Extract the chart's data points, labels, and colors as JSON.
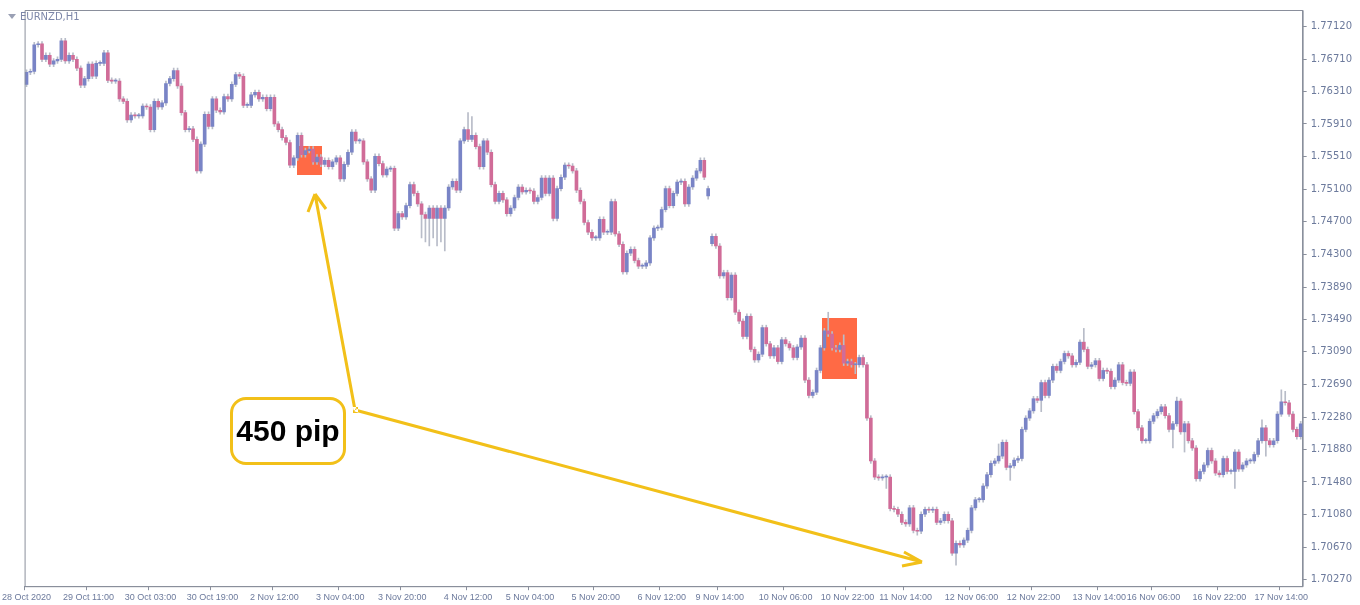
{
  "chart_data": {
    "type": "candlestick",
    "title": "EURNZD,H1",
    "annotations": [
      "450 pip"
    ],
    "colors": [
      "#7984c6",
      "#7984c6",
      "#7984c6",
      "#7984c6",
      "#d06c98",
      "#7984c6",
      "#d06c98",
      "#7984c6",
      "#7984c6",
      "#7984c6",
      "#d06c98",
      "#7984c6",
      "#d06c98",
      "#d06c98",
      "#d06c98",
      "#7984c6",
      "#7984c6",
      "#d06c98",
      "#7984c6",
      "#7984c6",
      "#7984c6",
      "#d06c98",
      "#d06c98",
      "#7984c6",
      "#d06c98",
      "#d06c98",
      "#d06c98",
      "#7984c6",
      "#d06c98",
      "#7984c6",
      "#7984c6",
      "#d06c98",
      "#d06c98",
      "#7984c6",
      "#d06c98",
      "#7984c6",
      "#7984c6",
      "#7984c6",
      "#7984c6",
      "#d06c98",
      "#d06c98",
      "#d06c98",
      "#7984c6",
      "#d06c98",
      "#d06c98",
      "#7984c6",
      "#7984c6",
      "#d06c98",
      "#7984c6",
      "#d06c98",
      "#d06c98",
      "#7984c6",
      "#d06c98",
      "#7984c6",
      "#7984c6",
      "#d06c98",
      "#d06c98",
      "#7984c6",
      "#7984c6",
      "#7984c6",
      "#d06c98",
      "#7984c6",
      "#d06c98",
      "#7984c6",
      "#d06c98",
      "#d06c98",
      "#d06c98",
      "#d06c98",
      "#d06c98",
      "#7984c6",
      "#7984c6",
      "#d06c98",
      "#7984c6",
      "#7984c6",
      "#d06c98",
      "#7984c6",
      "#d06c98",
      "#7984c6",
      "#d06c98",
      "#7984c6",
      "#7984c6",
      "#d06c98",
      "#7984c6",
      "#7984c6",
      "#7984c6",
      "#d06c98",
      "#7984c6",
      "#d06c98",
      "#d06c98",
      "#d06c98",
      "#7984c6",
      "#d06c98",
      "#d06c98",
      "#7984c6",
      "#7984c6",
      "#d06c98",
      "#7984c6",
      "#d06c98",
      "#7984c6",
      "#7984c6",
      "#d06c98",
      "#d06c98",
      "#d06c98",
      "#d06c98",
      "#7984c6",
      "#d06c98",
      "#7984c6",
      "#d06c98",
      "#7984c6",
      "#7984c6",
      "#7984c6",
      "#d06c98",
      "#7984c6",
      "#7984c6",
      "#d06c98",
      "#7984c6",
      "#d06c98",
      "#d06c98",
      "#7984c6",
      "#d06c98",
      "#d06c98",
      "#d06c98",
      "#7984c6",
      "#d06c98",
      "#d06c98",
      "#7984c6",
      "#7984c6",
      "#7984c6",
      "#d06c98",
      "#7984c6",
      "#d06c98",
      "#d06c98",
      "#7984c6",
      "#7984c6",
      "#d06c98",
      "#7984c6",
      "#d06c98",
      "#7984c6",
      "#7984c6",
      "#7984c6",
      "#d06c98",
      "#d06c98",
      "#d06c98",
      "#d06c98",
      "#d06c98",
      "#d06c98",
      "#d06c98",
      "#7984c6",
      "#7984c6",
      "#d06c98",
      "#7984c6",
      "#7984c6",
      "#d06c98",
      "#d06c98",
      "#d06c98",
      "#7984c6",
      "#7984c6",
      "#d06c98",
      "#d06c98",
      "#7984c6",
      "#7984c6",
      "#7984c6",
      "#7984c6",
      "#7984c6",
      "#7984c6",
      "#7984c6",
      "#d06c98",
      "#7984c6",
      "#7984c6",
      "#7984c6",
      "#d06c98",
      "#7984c6",
      "#7984c6",
      "#7984c6",
      "#7984c6",
      "#d06c98",
      "#7984c6",
      "#7984c6",
      "#d06c98",
      "#d06c98",
      "#7984c6",
      "#d06c98",
      "#7984c6",
      "#d06c98",
      "#d06c98",
      "#d06c98",
      "#7984c6",
      "#d06c98",
      "#d06c98",
      "#7984c6",
      "#7984c6",
      "#d06c98",
      "#d06c98",
      "#7984c6",
      "#d06c98",
      "#7984c6",
      "#d06c98",
      "#d06c98",
      "#d06c98",
      "#7984c6",
      "#7984c6",
      "#d06c98",
      "#d06c98",
      "#7984c6",
      "#7984c6",
      "#7984c6",
      "#7984c6",
      "#d06c98",
      "#d06c98",
      "#d06c98",
      "#7984c6",
      "#d06c98",
      "#7984c6",
      "#d06c98",
      "#7984c6",
      "#7984c6",
      "#d06c98",
      "#d06c98",
      "#d06c98",
      "#d06c98",
      "#d06c98",
      "#7984c6",
      "#7984c6",
      "#d06c98",
      "#d06c98",
      "#d06c98",
      "#d06c98",
      "#d06c98",
      "#7984c6",
      "#d06c98",
      "#d06c98",
      "#7984c6",
      "#7984c6",
      "#d06c98",
      "#7984c6",
      "#d06c98",
      "#7984c6",
      "#7984c6",
      "#d06c98",
      "#d06c98",
      "#7984c6",
      "#d06c98",
      "#7984c6",
      "#7984c6",
      "#7984c6",
      "#7984c6",
      "#7984c6",
      "#7984c6",
      "#7984c6",
      "#7984c6",
      "#7984c6",
      "#7984c6",
      "#7984c6",
      "#d06c98",
      "#7984c6",
      "#7984c6",
      "#7984c6",
      "#7984c6",
      "#7984c6",
      "#7984c6",
      "#7984c6",
      "#d06c98",
      "#7984c6",
      "#d06c98",
      "#7984c6",
      "#7984c6",
      "#d06c98",
      "#7984c6",
      "#7984c6",
      "#d06c98",
      "#d06c98",
      "#7984c6",
      "#7984c6",
      "#d06c98",
      "#d06c98",
      "#7984c6",
      "#7984c6",
      "#d06c98",
      "#7984c6",
      "#d06c98",
      "#d06c98",
      "#7984c6",
      "#7984c6",
      "#d06c98",
      "#d06c98",
      "#7984c6",
      "#d06c98",
      "#d06c98",
      "#d06c98",
      "#7984c6",
      "#7984c6",
      "#7984c6",
      "#7984c6",
      "#7984c6",
      "#d06c98",
      "#d06c98",
      "#7984c6",
      "#7984c6",
      "#d06c98",
      "#7984c6",
      "#d06c98",
      "#d06c98",
      "#d06c98",
      "#7984c6",
      "#7984c6",
      "#7984c6",
      "#d06c98",
      "#d06c98",
      "#d06c98",
      "#7984c6",
      "#d06c98",
      "#7984c6",
      "#7984c6",
      "#d06c98",
      "#7984c6",
      "#7984c6",
      "#7984c6",
      "#7984c6",
      "#7984c6",
      "#7984c6",
      "#d06c98",
      "#d06c98",
      "#7984c6",
      "#7984c6",
      "#7984c6",
      "#d06c98",
      "#d06c98",
      "#d06c98",
      "#d06c98",
      "#7984c6"
    ],
    "ylim": [
      1.7019,
      1.7732
    ],
    "yticks": [
      {
        "value": 1.7712,
        "label": "1.77120"
      },
      {
        "value": 1.7671,
        "label": "1.76710"
      },
      {
        "value": 1.7631,
        "label": "1.76310"
      },
      {
        "value": 1.7591,
        "label": "1.75910"
      },
      {
        "value": 1.7551,
        "label": "1.75510"
      },
      {
        "value": 1.751,
        "label": "1.75100"
      },
      {
        "value": 1.747,
        "label": "1.74700"
      },
      {
        "value": 1.743,
        "label": "1.74300"
      },
      {
        "value": 1.7389,
        "label": "1.73890"
      },
      {
        "value": 1.7349,
        "label": "1.73490"
      },
      {
        "value": 1.7309,
        "label": "1.73090"
      },
      {
        "value": 1.7269,
        "label": "1.72690"
      },
      {
        "value": 1.7228,
        "label": "1.72280"
      },
      {
        "value": 1.7188,
        "label": "1.71880"
      },
      {
        "value": 1.7148,
        "label": "1.71480"
      },
      {
        "value": 1.7108,
        "label": "1.71080"
      },
      {
        "value": 1.7067,
        "label": "1.70670"
      },
      {
        "value": 1.7027,
        "label": "1.70270"
      }
    ],
    "categories": [
      "28 Oct 2020",
      null,
      null,
      null,
      null,
      null,
      null,
      null,
      null,
      null,
      null,
      null,
      null,
      null,
      null,
      null,
      "29 Oct 11:00",
      null,
      null,
      null,
      null,
      null,
      null,
      null,
      null,
      null,
      null,
      null,
      null,
      null,
      null,
      null,
      "30 Oct 03:00",
      null,
      null,
      null,
      null,
      null,
      null,
      null,
      null,
      null,
      null,
      null,
      null,
      null,
      null,
      null,
      "30 Oct 19:00",
      null,
      null,
      null,
      null,
      null,
      null,
      null,
      null,
      null,
      null,
      null,
      null,
      null,
      null,
      null,
      "2 Nov 12:00",
      null,
      null,
      null,
      null,
      null,
      null,
      null,
      null,
      null,
      null,
      null,
      null,
      null,
      null,
      null,
      null,
      "3 Nov 04:00",
      null,
      null,
      null,
      null,
      null,
      null,
      null,
      null,
      null,
      null,
      null,
      null,
      null,
      null,
      null,
      "3 Nov 20:00",
      null,
      null,
      null,
      null,
      null,
      null,
      null,
      null,
      null,
      null,
      null,
      null,
      null,
      null,
      null,
      null,
      "4 Nov 12:00",
      null,
      null,
      null,
      null,
      null,
      null,
      null,
      null,
      null,
      null,
      null,
      null,
      null,
      null,
      null,
      "5 Nov 04:00",
      null,
      null,
      null,
      null,
      null,
      null,
      null,
      null,
      null,
      null,
      null,
      null,
      null,
      null,
      null,
      null,
      "5 Nov 20:00",
      null,
      null,
      null,
      null,
      null,
      null,
      null,
      null,
      null,
      null,
      null,
      null,
      null,
      null,
      null,
      null,
      "6 Nov 12:00",
      null,
      null,
      null,
      null,
      null,
      null,
      null,
      null,
      null,
      null,
      null,
      null,
      null,
      null,
      "9 Nov 14:00",
      null,
      null,
      null,
      null,
      null,
      null,
      null,
      null,
      null,
      null,
      null,
      null,
      null,
      null,
      null,
      null,
      "10 Nov 06:00",
      null,
      null,
      null,
      null,
      null,
      null,
      null,
      null,
      null,
      null,
      null,
      null,
      null,
      null,
      null,
      "10 Nov 22:00",
      null,
      null,
      null,
      null,
      null,
      null,
      null,
      null,
      null,
      null,
      null,
      null,
      null,
      null,
      "11 Nov 14:00",
      null,
      null,
      null,
      null,
      null,
      null,
      null,
      null,
      null,
      null,
      null,
      null,
      null,
      null,
      null,
      null,
      "12 Nov 06:00",
      null,
      null,
      null,
      null,
      null,
      null,
      null,
      null,
      null,
      null,
      null,
      null,
      null,
      null,
      null,
      "12 Nov 22:00",
      null,
      null,
      null,
      null,
      null,
      null,
      null,
      null,
      null,
      null,
      null,
      null,
      null,
      null,
      null,
      null,
      "13 Nov 14:00",
      null,
      null,
      null,
      null,
      null,
      null,
      null,
      null,
      null,
      null,
      null,
      null,
      null,
      "16 Nov 06:00",
      null,
      null,
      null,
      null,
      null,
      null,
      null,
      null,
      null,
      null,
      null,
      null,
      null,
      null,
      null,
      null,
      "16 Nov 22:00",
      null,
      null,
      null,
      null,
      null,
      null,
      null,
      null,
      null,
      null,
      null,
      null,
      null,
      null,
      null,
      "17 Nov 14:00",
      null,
      null,
      null,
      null,
      null
    ],
    "ohlc": [
      [
        1.764,
        1.7658,
        1.7637,
        1.7655
      ],
      [
        1.7655,
        1.7659,
        1.7652,
        1.7656
      ],
      [
        1.7656,
        1.7692,
        1.7653,
        1.7689
      ],
      [
        1.7689,
        1.7693,
        1.7686,
        1.769
      ],
      [
        1.769,
        1.7693,
        1.7668,
        1.7671
      ],
      [
        1.7671,
        1.7679,
        1.7668,
        1.7676
      ],
      [
        1.7676,
        1.7679,
        1.7662,
        1.7665
      ],
      [
        1.7665,
        1.7672,
        1.7662,
        1.7669
      ],
      [
        1.7669,
        1.7674,
        1.7666,
        1.7671
      ],
      [
        1.7671,
        1.7697,
        1.7668,
        1.7694
      ],
      [
        1.7694,
        1.7697,
        1.7666,
        1.7669
      ],
      [
        1.7669,
        1.7679,
        1.7666,
        1.7676
      ],
      [
        1.7676,
        1.7679,
        1.7668,
        1.7671
      ],
      [
        1.7671,
        1.7674,
        1.7657,
        1.766
      ],
      [
        1.766,
        1.7663,
        1.7636,
        1.7639
      ],
      [
        1.7639,
        1.765,
        1.7636,
        1.7647
      ],
      [
        1.7647,
        1.7668,
        1.7644,
        1.7665
      ],
      [
        1.7665,
        1.7668,
        1.7647,
        1.765
      ],
      [
        1.765,
        1.7669,
        1.7647,
        1.7666
      ],
      [
        1.7666,
        1.7669,
        1.7663,
        1.7666
      ],
      [
        1.7666,
        1.7682,
        1.7663,
        1.7679
      ],
      [
        1.7679,
        1.7682,
        1.7642,
        1.7645
      ],
      [
        1.7645,
        1.7648,
        1.7641,
        1.7644
      ],
      [
        1.7644,
        1.7647,
        1.7641,
        1.7644
      ],
      [
        1.7644,
        1.7647,
        1.7619,
        1.7622
      ],
      [
        1.7622,
        1.7625,
        1.7616,
        1.7619
      ],
      [
        1.7619,
        1.7622,
        1.7593,
        1.7596
      ],
      [
        1.7596,
        1.7605,
        1.7593,
        1.7602
      ],
      [
        1.7602,
        1.7605,
        1.7598,
        1.7601
      ],
      [
        1.7601,
        1.7604,
        1.7598,
        1.7601
      ],
      [
        1.7601,
        1.7616,
        1.7598,
        1.7613
      ],
      [
        1.7613,
        1.7616,
        1.7609,
        1.7612
      ],
      [
        1.7612,
        1.7615,
        1.7581,
        1.7584
      ],
      [
        1.7584,
        1.7622,
        1.7581,
        1.7619
      ],
      [
        1.7619,
        1.7622,
        1.7609,
        1.7612
      ],
      [
        1.7612,
        1.762,
        1.7609,
        1.7617
      ],
      [
        1.7617,
        1.7644,
        1.7614,
        1.7641
      ],
      [
        1.7641,
        1.765,
        1.7638,
        1.7647
      ],
      [
        1.7647,
        1.766,
        1.7644,
        1.7657
      ],
      [
        1.7657,
        1.766,
        1.7635,
        1.7638
      ],
      [
        1.7638,
        1.7641,
        1.7602,
        1.7605
      ],
      [
        1.7605,
        1.7608,
        1.7581,
        1.7584
      ],
      [
        1.7584,
        1.7588,
        1.7581,
        1.7585
      ],
      [
        1.7585,
        1.7588,
        1.7569,
        1.7572
      ],
      [
        1.7572,
        1.7575,
        1.753,
        1.7533
      ],
      [
        1.7533,
        1.7569,
        1.753,
        1.7566
      ],
      [
        1.7566,
        1.7606,
        1.7563,
        1.7603
      ],
      [
        1.7603,
        1.7606,
        1.7585,
        1.7588
      ],
      [
        1.7588,
        1.7625,
        1.7585,
        1.7622
      ],
      [
        1.7622,
        1.7625,
        1.7605,
        1.7608
      ],
      [
        1.7608,
        1.7611,
        1.7603,
        1.7606
      ],
      [
        1.7606,
        1.7628,
        1.7603,
        1.7625
      ],
      [
        1.7625,
        1.7628,
        1.7619,
        1.7622
      ],
      [
        1.7622,
        1.7643,
        1.7619,
        1.764
      ],
      [
        1.764,
        1.7655,
        1.7637,
        1.7652
      ],
      [
        1.7652,
        1.7655,
        1.7647,
        1.765
      ],
      [
        1.765,
        1.7653,
        1.7611,
        1.7614
      ],
      [
        1.7614,
        1.7617,
        1.7611,
        1.7614
      ],
      [
        1.7614,
        1.763,
        1.7611,
        1.7627
      ],
      [
        1.7627,
        1.7633,
        1.7624,
        1.763
      ],
      [
        1.763,
        1.7633,
        1.7619,
        1.7622
      ],
      [
        1.7622,
        1.7627,
        1.7619,
        1.7624
      ],
      [
        1.7624,
        1.7627,
        1.7607,
        1.761
      ],
      [
        1.761,
        1.7627,
        1.7607,
        1.7624
      ],
      [
        1.7624,
        1.7627,
        1.7588,
        1.7591
      ],
      [
        1.7591,
        1.7594,
        1.7581,
        1.7584
      ],
      [
        1.7584,
        1.7587,
        1.7571,
        1.7574
      ],
      [
        1.7574,
        1.7577,
        1.7565,
        1.7568
      ],
      [
        1.7568,
        1.7571,
        1.7537,
        1.754
      ],
      [
        1.754,
        1.7552,
        1.7537,
        1.7549
      ],
      [
        1.7549,
        1.758,
        1.7546,
        1.7577
      ],
      [
        1.7577,
        1.758,
        1.755,
        1.7553
      ],
      [
        1.7553,
        1.7561,
        1.755,
        1.7558
      ],
      [
        1.7558,
        1.7563,
        1.7555,
        1.756
      ],
      [
        1.756,
        1.7563,
        1.7541,
        1.7544
      ],
      [
        1.7544,
        1.7553,
        1.7541,
        1.755
      ],
      [
        1.755,
        1.7553,
        1.7538,
        1.7541
      ],
      [
        1.7541,
        1.7549,
        1.7538,
        1.7546
      ],
      [
        1.7546,
        1.7549,
        1.7535,
        1.7538
      ],
      [
        1.7538,
        1.7547,
        1.7535,
        1.7544
      ],
      [
        1.7544,
        1.7552,
        1.7541,
        1.7549
      ],
      [
        1.7549,
        1.7552,
        1.752,
        1.7523
      ],
      [
        1.7523,
        1.7544,
        1.752,
        1.7541
      ],
      [
        1.7541,
        1.7559,
        1.7538,
        1.7556
      ],
      [
        1.7556,
        1.7584,
        1.7553,
        1.7581
      ],
      [
        1.7581,
        1.7584,
        1.7567,
        1.757
      ],
      [
        1.757,
        1.7573,
        1.7567,
        1.757
      ],
      [
        1.757,
        1.7573,
        1.7541,
        1.7544
      ],
      [
        1.7544,
        1.7547,
        1.752,
        1.7523
      ],
      [
        1.7523,
        1.7526,
        1.7506,
        1.7509
      ],
      [
        1.7509,
        1.7554,
        1.7506,
        1.7551
      ],
      [
        1.7551,
        1.7554,
        1.7539,
        1.7542
      ],
      [
        1.7542,
        1.7545,
        1.7525,
        1.7528
      ],
      [
        1.7528,
        1.7538,
        1.7525,
        1.7535
      ],
      [
        1.7535,
        1.7539,
        1.7532,
        1.7536
      ],
      [
        1.7536,
        1.7539,
        1.7459,
        1.7462
      ],
      [
        1.7462,
        1.7483,
        1.7459,
        1.748
      ],
      [
        1.748,
        1.7483,
        1.7473,
        1.7476
      ],
      [
        1.7476,
        1.7493,
        1.7473,
        1.749
      ],
      [
        1.749,
        1.7519,
        1.7487,
        1.7516
      ],
      [
        1.7516,
        1.7519,
        1.7502,
        1.7505
      ],
      [
        1.7505,
        1.7508,
        1.7489,
        1.7492
      ],
      [
        1.7492,
        1.7495,
        1.745,
        1.7479
      ],
      [
        1.7479,
        1.7482,
        1.7445,
        1.7474
      ],
      [
        1.7474,
        1.749,
        1.744,
        1.7487
      ],
      [
        1.7487,
        1.749,
        1.745,
        1.7474
      ],
      [
        1.7474,
        1.749,
        1.744,
        1.7487
      ],
      [
        1.7487,
        1.749,
        1.7445,
        1.7474
      ],
      [
        1.7474,
        1.749,
        1.7434,
        1.7487
      ],
      [
        1.7487,
        1.7516,
        1.7484,
        1.7513
      ],
      [
        1.7513,
        1.7523,
        1.751,
        1.752
      ],
      [
        1.752,
        1.7523,
        1.7506,
        1.7509
      ],
      [
        1.7509,
        1.7573,
        1.7506,
        1.757
      ],
      [
        1.757,
        1.7587,
        1.7567,
        1.7584
      ],
      [
        1.7584,
        1.7605,
        1.7569,
        1.7572
      ],
      [
        1.7572,
        1.76,
        1.7569,
        1.7577
      ],
      [
        1.7577,
        1.758,
        1.756,
        1.7563
      ],
      [
        1.7563,
        1.7566,
        1.7535,
        1.7538
      ],
      [
        1.7538,
        1.7573,
        1.7535,
        1.757
      ],
      [
        1.757,
        1.7573,
        1.7553,
        1.7556
      ],
      [
        1.7556,
        1.7559,
        1.7513,
        1.7516
      ],
      [
        1.7516,
        1.7519,
        1.7492,
        1.7495
      ],
      [
        1.7495,
        1.7508,
        1.7492,
        1.7505
      ],
      [
        1.7505,
        1.7508,
        1.7494,
        1.7497
      ],
      [
        1.7497,
        1.75,
        1.7477,
        1.748
      ],
      [
        1.748,
        1.749,
        1.7477,
        1.7487
      ],
      [
        1.7487,
        1.7503,
        1.7484,
        1.75
      ],
      [
        1.75,
        1.7516,
        1.7497,
        1.7513
      ],
      [
        1.7513,
        1.7516,
        1.7504,
        1.7507
      ],
      [
        1.7507,
        1.7512,
        1.7504,
        1.7509
      ],
      [
        1.7509,
        1.7512,
        1.7505,
        1.7508
      ],
      [
        1.7508,
        1.7511,
        1.7492,
        1.7495
      ],
      [
        1.7495,
        1.7503,
        1.7492,
        1.75
      ],
      [
        1.75,
        1.7527,
        1.7497,
        1.7524
      ],
      [
        1.7524,
        1.7527,
        1.7502,
        1.7505
      ],
      [
        1.7505,
        1.7527,
        1.7502,
        1.7524
      ],
      [
        1.7524,
        1.7527,
        1.7471,
        1.7474
      ],
      [
        1.7474,
        1.7514,
        1.7471,
        1.7511
      ],
      [
        1.7511,
        1.7528,
        1.7508,
        1.7525
      ],
      [
        1.7525,
        1.7543,
        1.7522,
        1.754
      ],
      [
        1.754,
        1.7543,
        1.7536,
        1.7539
      ],
      [
        1.7539,
        1.7542,
        1.753,
        1.7533
      ],
      [
        1.7533,
        1.7536,
        1.7506,
        1.7509
      ],
      [
        1.7509,
        1.7512,
        1.7492,
        1.7495
      ],
      [
        1.7495,
        1.7498,
        1.7466,
        1.7469
      ],
      [
        1.7469,
        1.7472,
        1.7454,
        1.7457
      ],
      [
        1.7457,
        1.746,
        1.7447,
        1.745
      ],
      [
        1.745,
        1.7453,
        1.7447,
        1.745
      ],
      [
        1.745,
        1.7476,
        1.7447,
        1.7473
      ],
      [
        1.7473,
        1.7476,
        1.7454,
        1.7457
      ],
      [
        1.7457,
        1.746,
        1.7454,
        1.7457
      ],
      [
        1.7457,
        1.7498,
        1.7454,
        1.7495
      ],
      [
        1.7495,
        1.7498,
        1.7452,
        1.7455
      ],
      [
        1.7455,
        1.7458,
        1.7439,
        1.7442
      ],
      [
        1.7442,
        1.7445,
        1.7405,
        1.7408
      ],
      [
        1.7408,
        1.7434,
        1.7405,
        1.7431
      ],
      [
        1.7431,
        1.7439,
        1.7428,
        1.7436
      ],
      [
        1.7436,
        1.7439,
        1.7419,
        1.7422
      ],
      [
        1.7422,
        1.7425,
        1.7412,
        1.7415
      ],
      [
        1.7415,
        1.7418,
        1.7412,
        1.7415
      ],
      [
        1.7415,
        1.7422,
        1.7412,
        1.7419
      ],
      [
        1.7419,
        1.7453,
        1.7416,
        1.745
      ],
      [
        1.745,
        1.7465,
        1.7447,
        1.7462
      ],
      [
        1.7462,
        1.7466,
        1.7459,
        1.7463
      ],
      [
        1.7463,
        1.7488,
        1.746,
        1.7485
      ],
      [
        1.7485,
        1.7514,
        1.7482,
        1.7511
      ],
      [
        1.7511,
        1.7514,
        1.7487,
        1.749
      ],
      [
        1.749,
        1.7508,
        1.7487,
        1.7505
      ],
      [
        1.7505,
        1.7522,
        1.7502,
        1.7519
      ],
      [
        1.7519,
        1.7523,
        1.7516,
        1.752
      ],
      [
        1.752,
        1.7523,
        1.7489,
        1.7492
      ],
      [
        1.7492,
        1.7516,
        1.7489,
        1.7513
      ],
      [
        1.7513,
        1.7527,
        1.751,
        1.7524
      ],
      [
        1.7524,
        1.7536,
        1.7521,
        1.7533
      ],
      [
        1.7533,
        1.7549,
        1.753,
        1.7546
      ],
      [
        1.7546,
        1.7549,
        1.7522,
        1.7525
      ],
      [
        1.7502,
        1.7514,
        1.7498,
        1.7511
      ],
      [
        1.7443,
        1.7455,
        1.744,
        1.7452
      ],
      [
        1.7452,
        1.7455,
        1.7437,
        1.744
      ],
      [
        1.744,
        1.7443,
        1.74,
        1.7403
      ],
      [
        1.7403,
        1.741,
        1.74,
        1.7407
      ],
      [
        1.7407,
        1.741,
        1.7373,
        1.7376
      ],
      [
        1.7376,
        1.7407,
        1.7373,
        1.7404
      ],
      [
        1.7404,
        1.7407,
        1.7355,
        1.7358
      ],
      [
        1.7358,
        1.7361,
        1.7344,
        1.7347
      ],
      [
        1.7347,
        1.735,
        1.7325,
        1.7328
      ],
      [
        1.7328,
        1.7356,
        1.7325,
        1.7353
      ],
      [
        1.7353,
        1.7356,
        1.7309,
        1.7312
      ],
      [
        1.7312,
        1.7315,
        1.7296,
        1.7299
      ],
      [
        1.7299,
        1.7309,
        1.7296,
        1.7306
      ],
      [
        1.7306,
        1.7342,
        1.7303,
        1.7339
      ],
      [
        1.7339,
        1.7342,
        1.7316,
        1.7319
      ],
      [
        1.7319,
        1.7322,
        1.7301,
        1.7304
      ],
      [
        1.7304,
        1.7317,
        1.7301,
        1.7314
      ],
      [
        1.7314,
        1.7317,
        1.7294,
        1.7297
      ],
      [
        1.7297,
        1.7327,
        1.7294,
        1.7324
      ],
      [
        1.7324,
        1.7327,
        1.7316,
        1.7319
      ],
      [
        1.7319,
        1.7322,
        1.7311,
        1.7314
      ],
      [
        1.7314,
        1.7317,
        1.7299,
        1.7302
      ],
      [
        1.7302,
        1.7318,
        1.7299,
        1.7315
      ],
      [
        1.7315,
        1.7329,
        1.7312,
        1.7326
      ],
      [
        1.7326,
        1.7329,
        1.7271,
        1.7274
      ],
      [
        1.7274,
        1.7277,
        1.7252,
        1.7255
      ],
      [
        1.7255,
        1.7262,
        1.7252,
        1.7259
      ],
      [
        1.7259,
        1.7289,
        1.7256,
        1.7286
      ],
      [
        1.7286,
        1.7317,
        1.7283,
        1.7314
      ],
      [
        1.7314,
        1.7338,
        1.7311,
        1.7335
      ],
      [
        1.7335,
        1.7358,
        1.7328,
        1.7331
      ],
      [
        1.7331,
        1.7334,
        1.7311,
        1.7314
      ],
      [
        1.7314,
        1.7317,
        1.7309,
        1.7312
      ],
      [
        1.7312,
        1.732,
        1.7309,
        1.7317
      ],
      [
        1.7317,
        1.733,
        1.7292,
        1.7295
      ],
      [
        1.7295,
        1.73,
        1.7292,
        1.7297
      ],
      [
        1.7297,
        1.73,
        1.729,
        1.7293
      ],
      [
        1.7293,
        1.7296,
        1.7282,
        1.7293
      ],
      [
        1.7293,
        1.7305,
        1.729,
        1.7302
      ],
      [
        1.7302,
        1.7305,
        1.729,
        1.7293
      ],
      [
        1.7293,
        1.7296,
        1.7224,
        1.7227
      ],
      [
        1.7227,
        1.723,
        1.7171,
        1.7174
      ],
      [
        1.7174,
        1.7177,
        1.7151,
        1.7154
      ],
      [
        1.7154,
        1.7157,
        1.715,
        1.7153
      ],
      [
        1.7153,
        1.7157,
        1.715,
        1.7154
      ],
      [
        1.7154,
        1.7157,
        1.714,
        1.7154
      ],
      [
        1.7154,
        1.7157,
        1.7112,
        1.7115
      ],
      [
        1.7115,
        1.7118,
        1.7111,
        1.7114
      ],
      [
        1.7114,
        1.7117,
        1.7105,
        1.7108
      ],
      [
        1.7108,
        1.7111,
        1.7095,
        1.7098
      ],
      [
        1.7098,
        1.7101,
        1.7093,
        1.7096
      ],
      [
        1.7096,
        1.7119,
        1.7093,
        1.7116
      ],
      [
        1.7116,
        1.7119,
        1.7085,
        1.7088
      ],
      [
        1.7088,
        1.7091,
        1.7082,
        1.7087
      ],
      [
        1.7087,
        1.7111,
        1.7084,
        1.7108
      ],
      [
        1.7108,
        1.7117,
        1.7105,
        1.7114
      ],
      [
        1.7114,
        1.7117,
        1.711,
        1.7113
      ],
      [
        1.7113,
        1.7117,
        1.711,
        1.7114
      ],
      [
        1.7114,
        1.7117,
        1.7095,
        1.7098
      ],
      [
        1.7098,
        1.7103,
        1.7095,
        1.71
      ],
      [
        1.71,
        1.7111,
        1.7097,
        1.7108
      ],
      [
        1.7108,
        1.7111,
        1.7097,
        1.71
      ],
      [
        1.71,
        1.7103,
        1.7057,
        1.706
      ],
      [
        1.706,
        1.7075,
        1.7045,
        1.7072
      ],
      [
        1.7072,
        1.7075,
        1.7067,
        1.707
      ],
      [
        1.707,
        1.7079,
        1.7067,
        1.7076
      ],
      [
        1.7076,
        1.7091,
        1.7073,
        1.7088
      ],
      [
        1.7088,
        1.7119,
        1.7085,
        1.7116
      ],
      [
        1.7116,
        1.7129,
        1.7113,
        1.7126
      ],
      [
        1.7126,
        1.7129,
        1.7123,
        1.7126
      ],
      [
        1.7126,
        1.7146,
        1.7123,
        1.7143
      ],
      [
        1.7143,
        1.716,
        1.714,
        1.7157
      ],
      [
        1.7157,
        1.7174,
        1.7154,
        1.7171
      ],
      [
        1.7171,
        1.7177,
        1.7168,
        1.7174
      ],
      [
        1.7174,
        1.7195,
        1.7171,
        1.718
      ],
      [
        1.718,
        1.72,
        1.7177,
        1.7197
      ],
      [
        1.7197,
        1.72,
        1.7163,
        1.7166
      ],
      [
        1.7166,
        1.7171,
        1.715,
        1.7168
      ],
      [
        1.7168,
        1.7178,
        1.7165,
        1.7175
      ],
      [
        1.7175,
        1.718,
        1.7172,
        1.7177
      ],
      [
        1.7177,
        1.7216,
        1.7174,
        1.7213
      ],
      [
        1.7213,
        1.723,
        1.721,
        1.7227
      ],
      [
        1.7227,
        1.7239,
        1.7224,
        1.7236
      ],
      [
        1.7236,
        1.7254,
        1.7233,
        1.7251
      ],
      [
        1.7251,
        1.7254,
        1.7246,
        1.7249
      ],
      [
        1.7249,
        1.7274,
        1.7235,
        1.7271
      ],
      [
        1.7271,
        1.7274,
        1.7252,
        1.7255
      ],
      [
        1.7255,
        1.7277,
        1.7252,
        1.7274
      ],
      [
        1.7274,
        1.7294,
        1.7271,
        1.7291
      ],
      [
        1.7291,
        1.7294,
        1.7283,
        1.7286
      ],
      [
        1.7286,
        1.73,
        1.7283,
        1.7297
      ],
      [
        1.7297,
        1.731,
        1.7294,
        1.7307
      ],
      [
        1.7307,
        1.731,
        1.7301,
        1.7304
      ],
      [
        1.7304,
        1.7307,
        1.729,
        1.7293
      ],
      [
        1.7293,
        1.7299,
        1.729,
        1.7296
      ],
      [
        1.7296,
        1.7324,
        1.7293,
        1.7321
      ],
      [
        1.7321,
        1.7338,
        1.7309,
        1.7312
      ],
      [
        1.7312,
        1.7315,
        1.7288,
        1.7291
      ],
      [
        1.7291,
        1.7296,
        1.7288,
        1.7293
      ],
      [
        1.7293,
        1.7301,
        1.729,
        1.7298
      ],
      [
        1.7298,
        1.7301,
        1.7273,
        1.7276
      ],
      [
        1.7276,
        1.7289,
        1.7273,
        1.7286
      ],
      [
        1.7286,
        1.7289,
        1.7282,
        1.7285
      ],
      [
        1.7285,
        1.7288,
        1.7263,
        1.7266
      ],
      [
        1.7266,
        1.7277,
        1.7263,
        1.7274
      ],
      [
        1.7274,
        1.7296,
        1.7271,
        1.7293
      ],
      [
        1.7293,
        1.7296,
        1.7268,
        1.7271
      ],
      [
        1.7271,
        1.7274,
        1.7267,
        1.727
      ],
      [
        1.727,
        1.7287,
        1.7267,
        1.7284
      ],
      [
        1.7284,
        1.7287,
        1.7232,
        1.7235
      ],
      [
        1.7235,
        1.7238,
        1.7212,
        1.7215
      ],
      [
        1.7215,
        1.7218,
        1.7196,
        1.7199
      ],
      [
        1.7199,
        1.7202,
        1.7196,
        1.7199
      ],
      [
        1.7199,
        1.7226,
        1.7196,
        1.7223
      ],
      [
        1.7223,
        1.7233,
        1.722,
        1.723
      ],
      [
        1.723,
        1.7238,
        1.7227,
        1.7235
      ],
      [
        1.7235,
        1.7244,
        1.7232,
        1.7241
      ],
      [
        1.7241,
        1.7244,
        1.7227,
        1.723
      ],
      [
        1.723,
        1.7233,
        1.721,
        1.7213
      ],
      [
        1.7213,
        1.7223,
        1.719,
        1.722
      ],
      [
        1.722,
        1.7253,
        1.7217,
        1.7248
      ],
      [
        1.7248,
        1.7251,
        1.7207,
        1.721
      ],
      [
        1.721,
        1.7223,
        1.7185,
        1.722
      ],
      [
        1.722,
        1.7223,
        1.7196,
        1.7199
      ],
      [
        1.7199,
        1.7202,
        1.7187,
        1.719
      ],
      [
        1.719,
        1.7193,
        1.7149,
        1.7152
      ],
      [
        1.7152,
        1.7164,
        1.7149,
        1.7161
      ],
      [
        1.7161,
        1.7172,
        1.7158,
        1.7169
      ],
      [
        1.7169,
        1.719,
        1.7166,
        1.7187
      ],
      [
        1.7187,
        1.719,
        1.7171,
        1.7174
      ],
      [
        1.7174,
        1.7177,
        1.7156,
        1.7159
      ],
      [
        1.7159,
        1.7162,
        1.7154,
        1.7157
      ],
      [
        1.7157,
        1.718,
        1.7154,
        1.7177
      ],
      [
        1.7177,
        1.718,
        1.7158,
        1.7161
      ],
      [
        1.7161,
        1.7164,
        1.7158,
        1.7161
      ],
      [
        1.7161,
        1.7188,
        1.714,
        1.7185
      ],
      [
        1.7185,
        1.7188,
        1.7161,
        1.7164
      ],
      [
        1.7164,
        1.7172,
        1.7161,
        1.7169
      ],
      [
        1.7169,
        1.7177,
        1.7166,
        1.7174
      ],
      [
        1.7174,
        1.7177,
        1.7171,
        1.7174
      ],
      [
        1.7174,
        1.7185,
        1.7171,
        1.7182
      ],
      [
        1.7182,
        1.7202,
        1.7179,
        1.7199
      ],
      [
        1.7199,
        1.7225,
        1.7196,
        1.7215
      ],
      [
        1.7215,
        1.7218,
        1.718,
        1.7199
      ],
      [
        1.7199,
        1.7202,
        1.7191,
        1.7194
      ],
      [
        1.7194,
        1.7202,
        1.7191,
        1.7199
      ],
      [
        1.7199,
        1.7235,
        1.7196,
        1.7232
      ],
      [
        1.7232,
        1.7262,
        1.7229,
        1.7247
      ],
      [
        1.7247,
        1.726,
        1.7243,
        1.7246
      ],
      [
        1.7246,
        1.7249,
        1.7229,
        1.7232
      ],
      [
        1.7232,
        1.7235,
        1.721,
        1.7213
      ],
      [
        1.7213,
        1.7216,
        1.7201,
        1.7204
      ],
      [
        1.7204,
        1.7223,
        1.7201,
        1.722
      ]
    ]
  }
}
